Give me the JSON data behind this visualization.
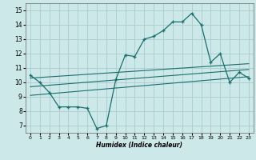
{
  "title": "",
  "xlabel": "Humidex (Indice chaleur)",
  "ylabel": "",
  "bg_color": "#cce8e8",
  "grid_color": "#aacccc",
  "line_color": "#1a6e6e",
  "xlim": [
    -0.5,
    23.5
  ],
  "ylim": [
    6.5,
    15.5
  ],
  "xticks": [
    0,
    1,
    2,
    3,
    4,
    5,
    6,
    7,
    8,
    9,
    10,
    11,
    12,
    13,
    14,
    15,
    16,
    17,
    18,
    19,
    20,
    21,
    22,
    23
  ],
  "yticks": [
    7,
    8,
    9,
    10,
    11,
    12,
    13,
    14,
    15
  ],
  "main_curve_x": [
    0,
    1,
    2,
    3,
    4,
    5,
    6,
    7,
    8,
    9,
    10,
    11,
    12,
    13,
    14,
    15,
    16,
    17,
    18,
    19,
    20,
    21,
    22,
    23
  ],
  "main_curve_y": [
    10.5,
    10.0,
    9.3,
    8.3,
    8.3,
    8.3,
    8.2,
    6.8,
    7.0,
    10.2,
    11.9,
    11.8,
    13.0,
    13.2,
    13.6,
    14.2,
    14.2,
    14.8,
    14.0,
    11.4,
    12.0,
    10.0,
    10.7,
    10.3
  ],
  "line1_x": [
    0,
    23
  ],
  "line1_y": [
    10.3,
    11.3
  ],
  "line2_x": [
    0,
    23
  ],
  "line2_y": [
    9.7,
    10.9
  ],
  "line3_x": [
    0,
    23
  ],
  "line3_y": [
    9.1,
    10.4
  ]
}
